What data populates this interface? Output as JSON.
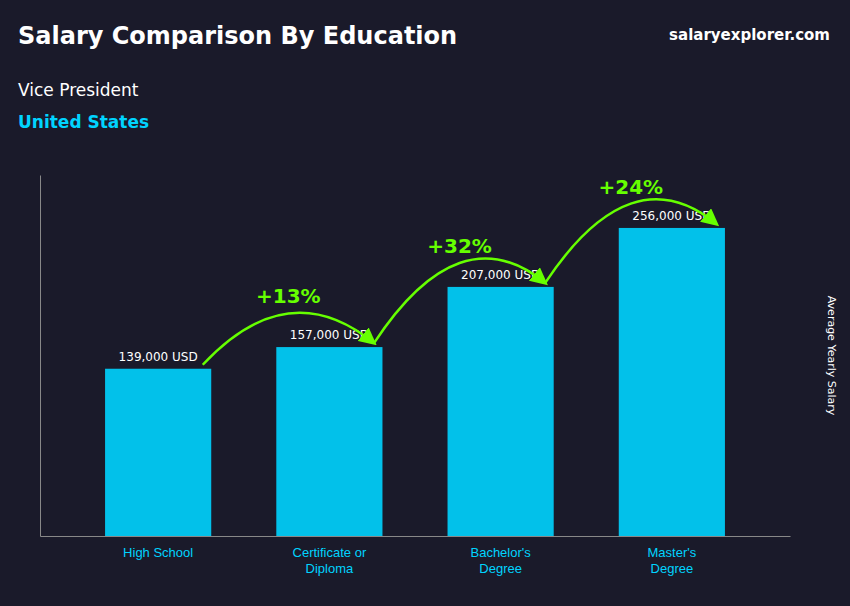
{
  "chart_data": {
    "type": "bar",
    "title": "Salary Comparison By Education",
    "subtitle": "Vice President",
    "ylabel": "Average Yearly Salary",
    "categories": [
      "High School",
      "Certificate or\nDiploma",
      "Bachelor's\nDegree",
      "Master's\nDegree"
    ],
    "values": [
      139000,
      157000,
      207000,
      256000
    ],
    "value_labels": [
      "139,000 USD",
      "157,000 USD",
      "207,000 USD",
      "256,000 USD"
    ],
    "data_labels": true,
    "color": "#00d4ff",
    "ylim": [
      0,
      300000
    ],
    "tick_labels": "x",
    "grid": false,
    "annotations": [
      "United States",
      "salaryexplorer.com",
      "+13%",
      "+32%",
      "+24%"
    ]
  }
}
